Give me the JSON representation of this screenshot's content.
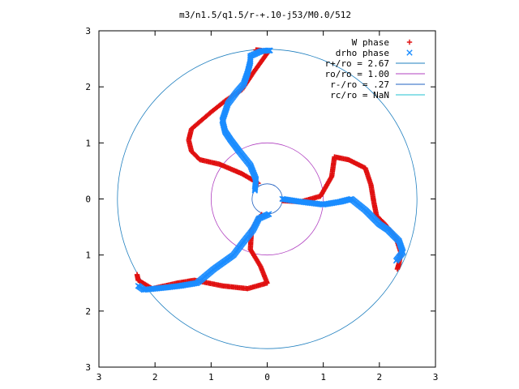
{
  "chart_data": {
    "type": "scatter",
    "title": "m3/n1.5/q1.5/r-+.10-j53/M0.0/512",
    "xlabel": "",
    "ylabel": "",
    "xlim": [
      -3,
      3
    ],
    "ylim": [
      -3,
      3
    ],
    "x_tick_values": [
      -3,
      -2,
      -1,
      0,
      1,
      2,
      3
    ],
    "x_tick_labels": [
      "3",
      "2",
      "1",
      "0",
      "1",
      "2",
      "3"
    ],
    "y_tick_values": [
      3,
      2,
      1,
      0,
      -1,
      -2,
      -3
    ],
    "y_tick_labels": [
      "3",
      "2",
      "1",
      "0",
      "1",
      "2",
      "3"
    ],
    "grid": false,
    "legend_position": "top-right",
    "circles": [
      {
        "name": "r+/ro = 2.67",
        "radius": 2.67,
        "color": "#1f7fbf"
      },
      {
        "name": "ro/ro = 1.00",
        "radius": 1.0,
        "color": "#b040c0"
      },
      {
        "name": "r-/ro = .27",
        "radius": 0.27,
        "color": "#2060c0"
      },
      {
        "name": "rc/ro = NaN",
        "radius": null,
        "color": "#20c0d0"
      }
    ],
    "series": [
      {
        "name": "W phase",
        "marker": "+",
        "color": "#e01010",
        "arms": [
          [
            [
              -0.1,
              -0.28
            ],
            [
              -0.28,
              -0.55
            ],
            [
              -0.3,
              -0.9
            ],
            [
              -0.12,
              -1.2
            ],
            [
              0.0,
              -1.5
            ],
            [
              -0.35,
              -1.6
            ],
            [
              -0.8,
              -1.55
            ],
            [
              -1.3,
              -1.45
            ],
            [
              -1.6,
              -1.5
            ],
            [
              -2.05,
              -1.6
            ],
            [
              -2.3,
              -1.45
            ],
            [
              -2.32,
              -1.35
            ]
          ],
          [
            [
              -0.16,
              0.28
            ],
            [
              -0.45,
              0.45
            ],
            [
              -0.85,
              0.62
            ],
            [
              -1.2,
              0.7
            ],
            [
              -1.35,
              0.85
            ],
            [
              -1.4,
              1.05
            ],
            [
              -1.35,
              1.25
            ],
            [
              -1.0,
              1.55
            ],
            [
              -0.75,
              1.75
            ],
            [
              -0.45,
              1.95
            ],
            [
              -0.25,
              2.25
            ],
            [
              0.0,
              2.6
            ],
            [
              -0.1,
              2.65
            ],
            [
              -0.2,
              2.66
            ]
          ],
          [
            [
              0.27,
              -0.03
            ],
            [
              0.6,
              -0.05
            ],
            [
              0.95,
              0.05
            ],
            [
              1.15,
              0.4
            ],
            [
              1.2,
              0.75
            ],
            [
              1.45,
              0.7
            ],
            [
              1.75,
              0.55
            ],
            [
              1.85,
              0.25
            ],
            [
              1.9,
              -0.05
            ],
            [
              1.95,
              -0.3
            ],
            [
              2.1,
              -0.45
            ],
            [
              2.3,
              -0.7
            ],
            [
              2.38,
              -0.95
            ],
            [
              2.35,
              -1.15
            ],
            [
              2.32,
              -1.25
            ]
          ]
        ]
      },
      {
        "name": "drho phase",
        "marker": "x",
        "color": "#1a8cff",
        "arms": [
          [
            [
              0.03,
              -0.27
            ],
            [
              -0.15,
              -0.35
            ],
            [
              -0.25,
              -0.55
            ],
            [
              -0.45,
              -0.8
            ],
            [
              -0.6,
              -1.0
            ],
            [
              -0.95,
              -1.25
            ],
            [
              -1.25,
              -1.5
            ],
            [
              -1.55,
              -1.55
            ],
            [
              -1.8,
              -1.58
            ],
            [
              -2.2,
              -1.62
            ],
            [
              -2.3,
              -1.55
            ]
          ],
          [
            [
              -0.22,
              0.15
            ],
            [
              -0.2,
              0.35
            ],
            [
              -0.3,
              0.6
            ],
            [
              -0.5,
              0.85
            ],
            [
              -0.65,
              1.05
            ],
            [
              -0.75,
              1.2
            ],
            [
              -0.8,
              1.4
            ],
            [
              -0.7,
              1.7
            ],
            [
              -0.55,
              1.9
            ],
            [
              -0.42,
              2.05
            ],
            [
              -0.35,
              2.25
            ],
            [
              -0.3,
              2.45
            ],
            [
              -0.3,
              2.55
            ],
            [
              -0.1,
              2.64
            ],
            [
              0.05,
              2.65
            ]
          ],
          [
            [
              0.27,
              0.0
            ],
            [
              0.6,
              -0.05
            ],
            [
              1.0,
              -0.1
            ],
            [
              1.3,
              -0.05
            ],
            [
              1.5,
              0.0
            ],
            [
              1.75,
              -0.2
            ],
            [
              1.9,
              -0.35
            ],
            [
              2.0,
              -0.45
            ],
            [
              2.15,
              -0.55
            ],
            [
              2.35,
              -0.75
            ],
            [
              2.42,
              -0.95
            ],
            [
              2.3,
              -1.1
            ]
          ]
        ]
      }
    ]
  }
}
